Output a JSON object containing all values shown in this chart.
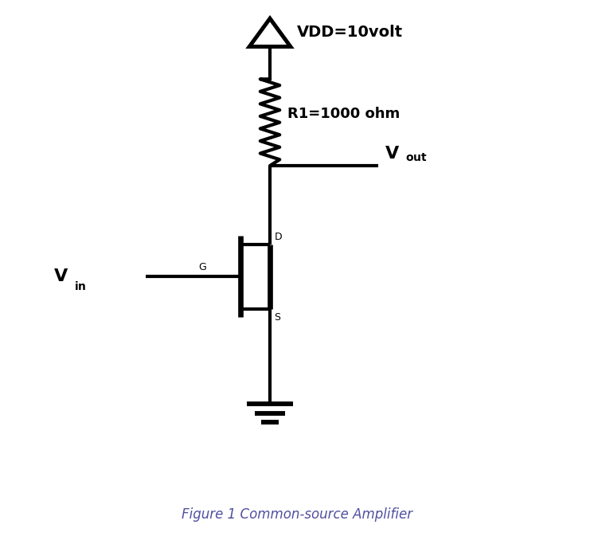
{
  "title": "Figure 1 Common-source Amplifier",
  "vdd_label": "VDD=10volt",
  "r1_label": "R1=1000 ohm",
  "bg_color": "#ffffff",
  "line_color": "#000000",
  "caption_color": "#5050a0",
  "line_width": 3.0,
  "fig_width": 7.46,
  "fig_height": 6.88,
  "gate_label": "G",
  "drain_label": "D",
  "source_label": "S"
}
